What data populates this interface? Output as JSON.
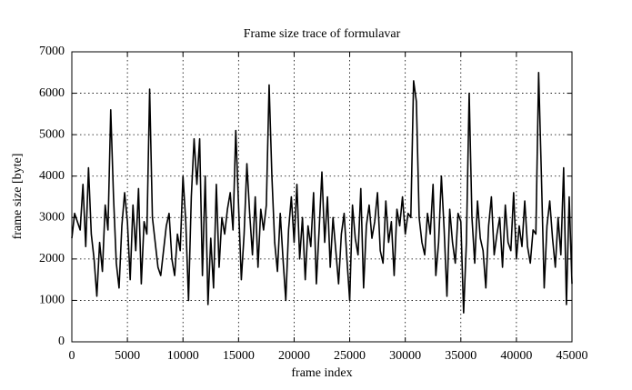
{
  "chart_data": {
    "type": "line",
    "title": "Frame size trace of formulavar",
    "x_label": "frame index",
    "y_label": "frame size [byte]",
    "color": "#000000",
    "grid": true,
    "xlim": [
      0,
      45000
    ],
    "ylim": [
      0,
      7000
    ],
    "xticks": [
      0,
      5000,
      10000,
      15000,
      20000,
      25000,
      30000,
      35000,
      40000,
      45000
    ],
    "yticks": [
      0,
      1000,
      2000,
      3000,
      4000,
      5000,
      6000,
      7000
    ],
    "x": [
      0,
      250,
      500,
      750,
      1000,
      1250,
      1500,
      1750,
      2000,
      2250,
      2500,
      2750,
      3000,
      3250,
      3500,
      3750,
      4000,
      4250,
      4500,
      4750,
      5000,
      5250,
      5500,
      5750,
      6000,
      6250,
      6500,
      6750,
      7000,
      7250,
      7500,
      7750,
      8000,
      8250,
      8500,
      8750,
      9000,
      9250,
      9500,
      9750,
      10000,
      10250,
      10500,
      10750,
      11000,
      11250,
      11500,
      11750,
      12000,
      12250,
      12500,
      12750,
      13000,
      13250,
      13500,
      13750,
      14000,
      14250,
      14500,
      14750,
      15000,
      15250,
      15500,
      15750,
      16000,
      16250,
      16500,
      16750,
      17000,
      17250,
      17500,
      17750,
      18000,
      18250,
      18500,
      18750,
      19000,
      19250,
      19500,
      19750,
      20000,
      20250,
      20500,
      20750,
      21000,
      21250,
      21500,
      21750,
      22000,
      22250,
      22500,
      22750,
      23000,
      23250,
      23500,
      23750,
      24000,
      24250,
      24500,
      24750,
      25000,
      25250,
      25500,
      25750,
      26000,
      26250,
      26500,
      26750,
      27000,
      27250,
      27500,
      27750,
      28000,
      28250,
      28500,
      28750,
      29000,
      29250,
      29500,
      29750,
      30000,
      30250,
      30500,
      30750,
      31000,
      31250,
      31500,
      31750,
      32000,
      32250,
      32500,
      32750,
      33000,
      33250,
      33500,
      33750,
      34000,
      34250,
      34500,
      34750,
      35000,
      35250,
      35500,
      35750,
      36000,
      36250,
      36500,
      36750,
      37000,
      37250,
      37500,
      37750,
      38000,
      38250,
      38500,
      38750,
      39000,
      39250,
      39500,
      39750,
      40000,
      40250,
      40500,
      40750,
      41000,
      41250,
      41500,
      41750,
      42000,
      42250,
      42500,
      42750,
      43000,
      43250,
      43500,
      43750,
      44000,
      44250,
      44500,
      44750,
      45000
    ],
    "values": [
      2500,
      3100,
      2900,
      2700,
      3800,
      2300,
      4200,
      2600,
      2000,
      1100,
      2400,
      1700,
      3300,
      2700,
      5600,
      3500,
      1900,
      1300,
      2800,
      3600,
      2900,
      1500,
      3300,
      2200,
      3700,
      1400,
      2900,
      2600,
      6100,
      3000,
      2400,
      1800,
      1600,
      2200,
      2800,
      3100,
      2000,
      1600,
      2600,
      2200,
      4000,
      2900,
      1000,
      3500,
      4900,
      3800,
      4900,
      1600,
      4000,
      900,
      2500,
      1300,
      3800,
      1800,
      3000,
      2600,
      3200,
      3600,
      2700,
      5100,
      3300,
      1500,
      2600,
      4300,
      3100,
      2100,
      3500,
      1800,
      3200,
      2700,
      3300,
      6200,
      4000,
      2400,
      1700,
      3100,
      2000,
      1000,
      2700,
      3500,
      2400,
      3800,
      2000,
      3000,
      1500,
      2800,
      2300,
      3600,
      1400,
      2700,
      4100,
      2400,
      3500,
      1800,
      3000,
      2200,
      1400,
      2600,
      3100,
      2000,
      1000,
      3300,
      2500,
      2100,
      3700,
      1300,
      2800,
      3300,
      2500,
      2900,
      3600,
      2200,
      1900,
      3400,
      2400,
      2900,
      1600,
      3200,
      2800,
      3500,
      2600,
      3100,
      3000,
      6300,
      5800,
      3000,
      2400,
      2100,
      3100,
      2600,
      3800,
      1600,
      2400,
      4000,
      2700,
      1100,
      3200,
      2400,
      1900,
      3100,
      2900,
      700,
      2400,
      6000,
      3000,
      1900,
      3400,
      2500,
      2200,
      1300,
      2800,
      3500,
      2100,
      2600,
      3000,
      1800,
      3300,
      2400,
      2200,
      3600,
      2000,
      2800,
      2300,
      3400,
      2300,
      1900,
      2700,
      2600,
      6500,
      4000,
      1300,
      2800,
      3400,
      2500,
      1800,
      3000,
      2100,
      4200,
      900,
      3500,
      1400
    ]
  }
}
